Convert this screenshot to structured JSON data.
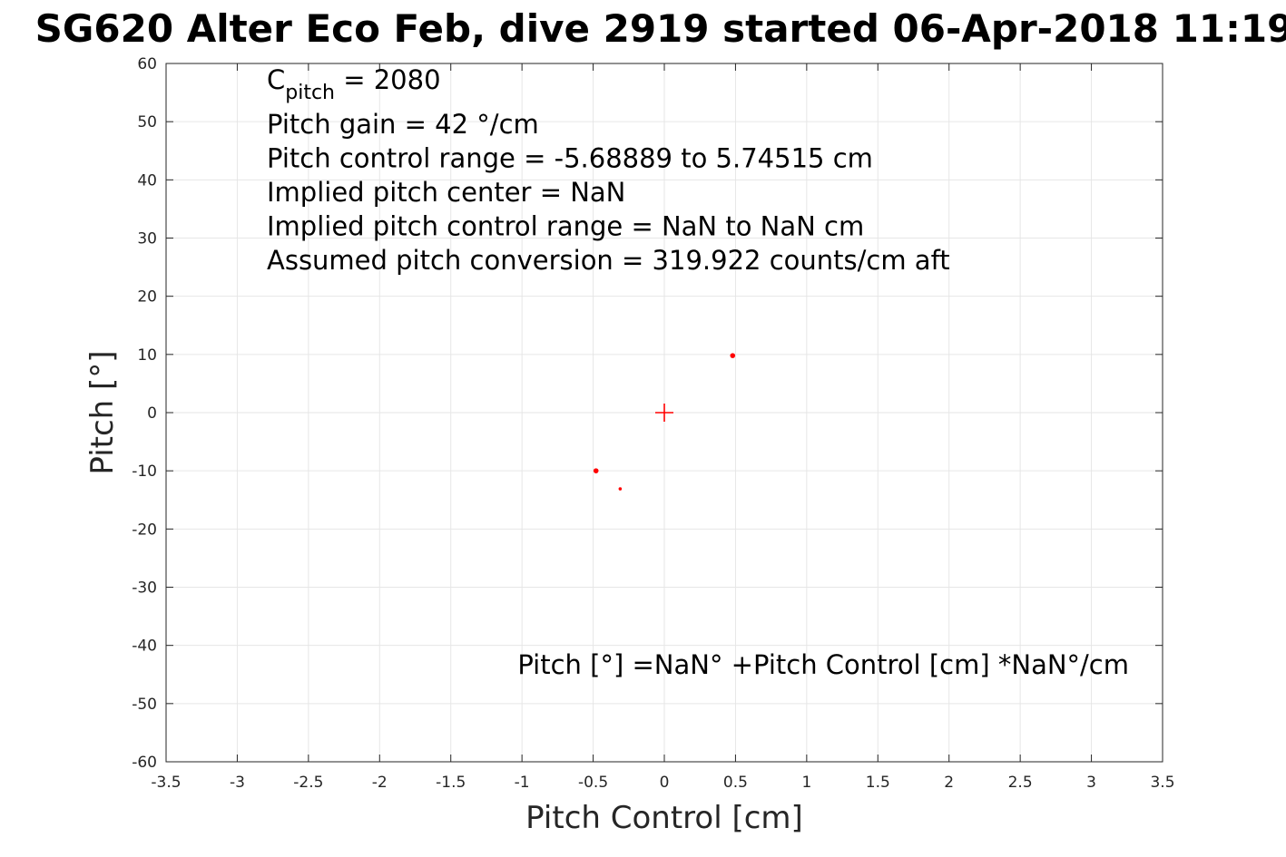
{
  "chart_data": {
    "type": "scatter",
    "title": "SG620 Alter Eco Feb, dive 2919 started 06-Apr-2018 11:19",
    "xlabel": "Pitch Control [cm]",
    "ylabel": "Pitch [°]",
    "xlim": [
      -3.5,
      3.5
    ],
    "ylim": [
      -60,
      60
    ],
    "xticks": [
      -3.5,
      -3,
      -2.5,
      -2,
      -1.5,
      -1,
      -0.5,
      0,
      0.5,
      1,
      1.5,
      2,
      2.5,
      3,
      3.5
    ],
    "xtick_labels": [
      "-3.5",
      "-3",
      "-2.5",
      "-2",
      "-1.5",
      "-1",
      "-0.5",
      "0",
      "0.5",
      "1",
      "1.5",
      "2",
      "2.5",
      "3",
      "3.5"
    ],
    "yticks": [
      60,
      50,
      40,
      30,
      20,
      10,
      0,
      -10,
      -20,
      -30,
      -40,
      -50,
      -60
    ],
    "ytick_labels": [
      "60",
      "50",
      "40",
      "30",
      "20",
      "10",
      "0",
      "-10",
      "-20",
      "-30",
      "-40",
      "-50",
      "-60"
    ],
    "grid": true,
    "series": [
      {
        "marker": "dot",
        "color": "#ff0000",
        "points": [
          {
            "x": 0.48,
            "y": 9.8,
            "size": "large"
          },
          {
            "x": -0.48,
            "y": -10.0,
            "size": "large"
          },
          {
            "x": -0.31,
            "y": -13.1,
            "size": "small"
          }
        ]
      },
      {
        "marker": "plus",
        "color": "#ff0000",
        "points": [
          {
            "x": 0.0,
            "y": 0.0
          }
        ]
      }
    ],
    "annotations": {
      "c_pitch_symbol": "C",
      "c_pitch_subscript": "pitch",
      "c_pitch_value": " = 2080",
      "lines": [
        "Pitch gain = 42 °/cm",
        "Pitch control range = -5.68889 to 5.74515 cm",
        "Implied pitch center = NaN",
        "Implied pitch control range = NaN to NaN cm",
        "Assumed pitch conversion = 319.922 counts/cm aft"
      ],
      "fit_equation": "Pitch [°] =NaN° +Pitch Control [cm] *NaN°/cm"
    }
  }
}
